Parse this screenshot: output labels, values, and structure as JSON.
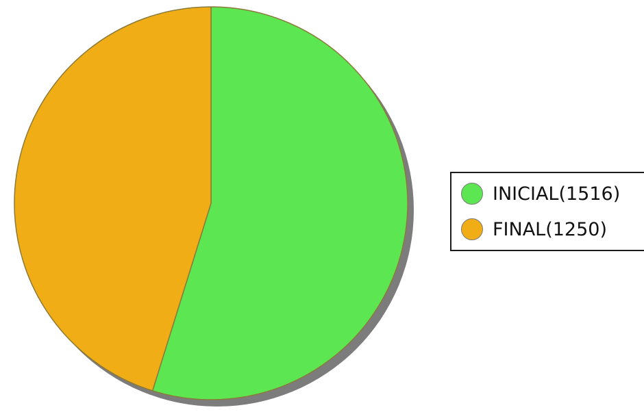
{
  "chart_data": {
    "type": "pie",
    "slices": [
      {
        "label": "INICIAL(1516)",
        "value": 1516,
        "color": "#5ce651"
      },
      {
        "label": "FINAL(1250)",
        "value": 1250,
        "color": "#f0ad16"
      }
    ],
    "legend_position": "right",
    "slice_border_color": "#8a7a3a",
    "shadow_color": "#7c7c7c"
  }
}
